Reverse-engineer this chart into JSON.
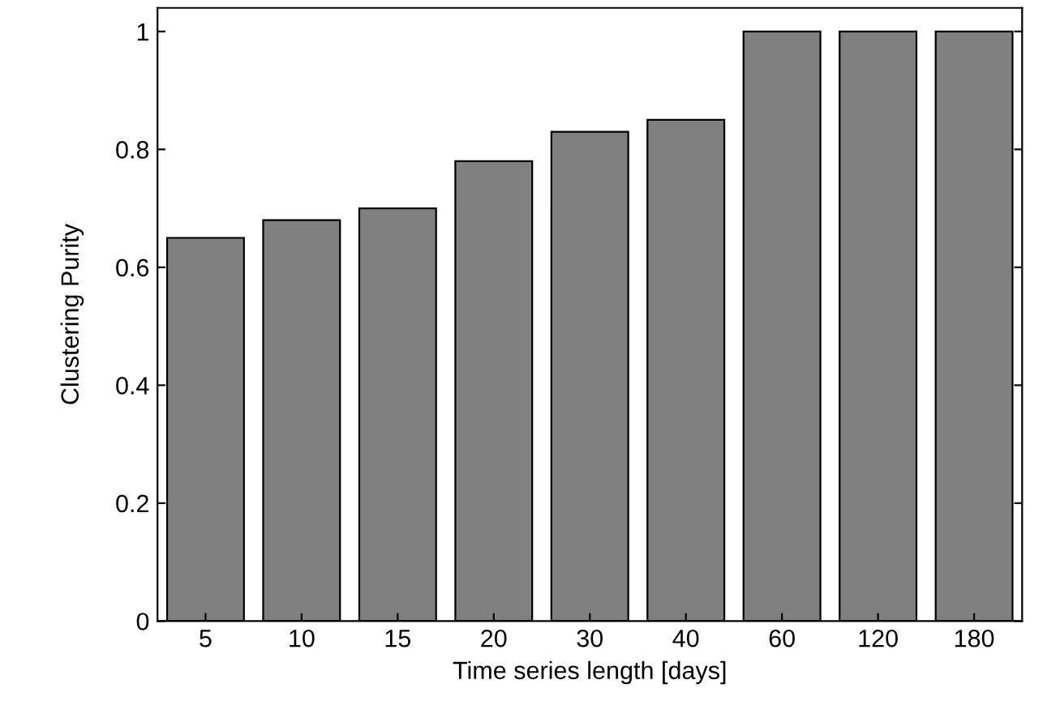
{
  "chart_data": {
    "type": "bar",
    "xlabel": "Time series length [days]",
    "ylabel": "Clustering Purity",
    "categories": [
      "5",
      "10",
      "15",
      "20",
      "30",
      "40",
      "60",
      "120",
      "180"
    ],
    "values": [
      0.65,
      0.68,
      0.7,
      0.78,
      0.83,
      0.85,
      1,
      1,
      1
    ],
    "color": "#808080",
    "ylim": [
      0,
      1.04
    ],
    "yticks": [
      0,
      0.2,
      0.4,
      0.6,
      0.8,
      1
    ],
    "grid": false
  }
}
